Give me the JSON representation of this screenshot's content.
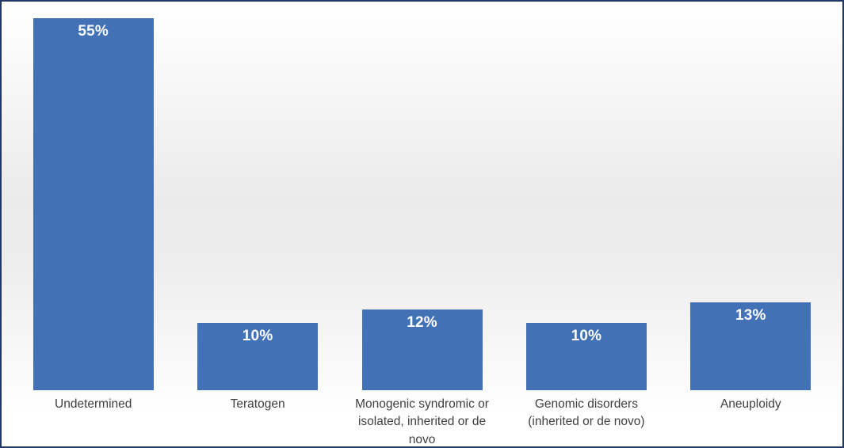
{
  "chart_data": {
    "type": "bar",
    "title": "",
    "xlabel": "",
    "ylabel": "",
    "categories": [
      "Undetermined",
      "Teratogen",
      "Monogenic syndromic or isolated, inherited or de novo",
      "Genomic disorders (inherited or de novo)",
      "Aneuploidy"
    ],
    "values": [
      55,
      10,
      12,
      10,
      13
    ],
    "value_labels": [
      "55%",
      "10%",
      "12%",
      "10%",
      "13%"
    ],
    "ylim": [
      0,
      57.5
    ],
    "grid": false,
    "legend": false,
    "bar_color": "#4271B6",
    "value_label_color": "#FFFFFF",
    "category_label_color": "#404040",
    "frame_border_color": "#203864",
    "background_color": "#FFFFFF"
  }
}
